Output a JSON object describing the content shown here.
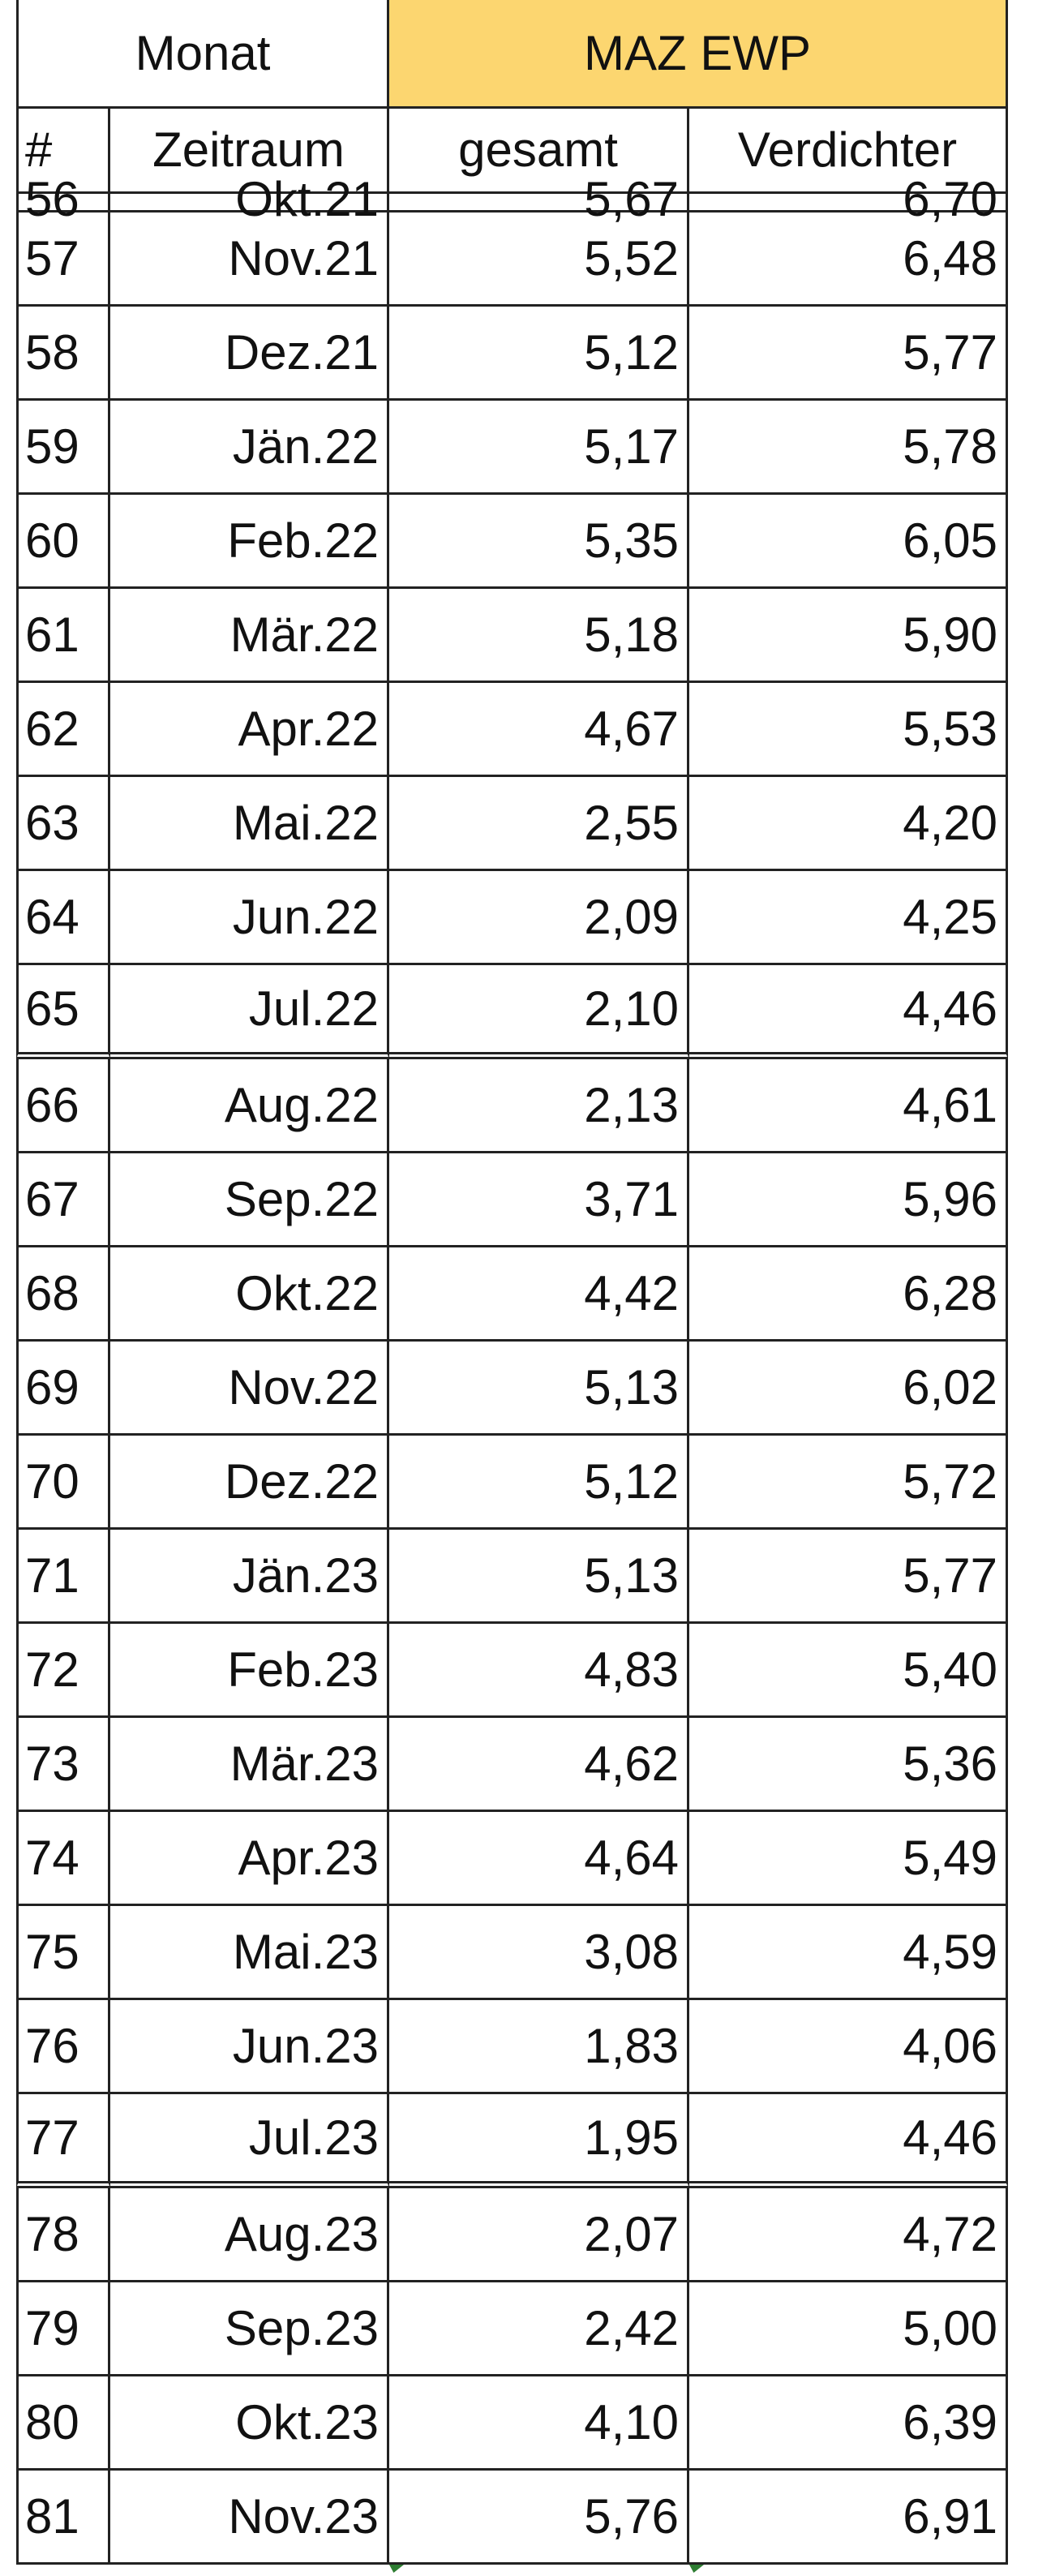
{
  "header": {
    "group_left": "Monat",
    "group_right": "MAZ EWP",
    "columns": [
      "#",
      "Zeitraum",
      "gesamt",
      "Verdichter"
    ]
  },
  "partial_row": [
    "56",
    "Okt.21",
    "5,67",
    "6,70"
  ],
  "rows": [
    [
      "57",
      "Nov.21",
      "5,52",
      "6,48"
    ],
    [
      "58",
      "Dez.21",
      "5,12",
      "5,77"
    ],
    [
      "59",
      "Jän.22",
      "5,17",
      "5,78"
    ],
    [
      "60",
      "Feb.22",
      "5,35",
      "6,05"
    ],
    [
      "61",
      "Mär.22",
      "5,18",
      "5,90"
    ],
    [
      "62",
      "Apr.22",
      "4,67",
      "5,53"
    ],
    [
      "63",
      "Mai.22",
      "2,55",
      "4,20"
    ],
    [
      "64",
      "Jun.22",
      "2,09",
      "4,25"
    ],
    [
      "65",
      "Jul.22",
      "2,10",
      "4,46"
    ],
    [
      "66",
      "Aug.22",
      "2,13",
      "4,61"
    ],
    [
      "67",
      "Sep.22",
      "3,71",
      "5,96"
    ],
    [
      "68",
      "Okt.22",
      "4,42",
      "6,28"
    ],
    [
      "69",
      "Nov.22",
      "5,13",
      "6,02"
    ],
    [
      "70",
      "Dez.22",
      "5,12",
      "5,72"
    ],
    [
      "71",
      "Jän.23",
      "5,13",
      "5,77"
    ],
    [
      "72",
      "Feb.23",
      "4,83",
      "5,40"
    ],
    [
      "73",
      "Mär.23",
      "4,62",
      "5,36"
    ],
    [
      "74",
      "Apr.23",
      "4,64",
      "5,49"
    ],
    [
      "75",
      "Mai.23",
      "3,08",
      "4,59"
    ],
    [
      "76",
      "Jun.23",
      "1,83",
      "4,06"
    ],
    [
      "77",
      "Jul.23",
      "1,95",
      "4,46"
    ],
    [
      "78",
      "Aug.23",
      "2,07",
      "4,72"
    ],
    [
      "79",
      "Sep.23",
      "2,42",
      "5,00"
    ],
    [
      "80",
      "Okt.23",
      "4,10",
      "6,39"
    ],
    [
      "81",
      "Nov.23",
      "5,76",
      "6,91"
    ]
  ]
}
